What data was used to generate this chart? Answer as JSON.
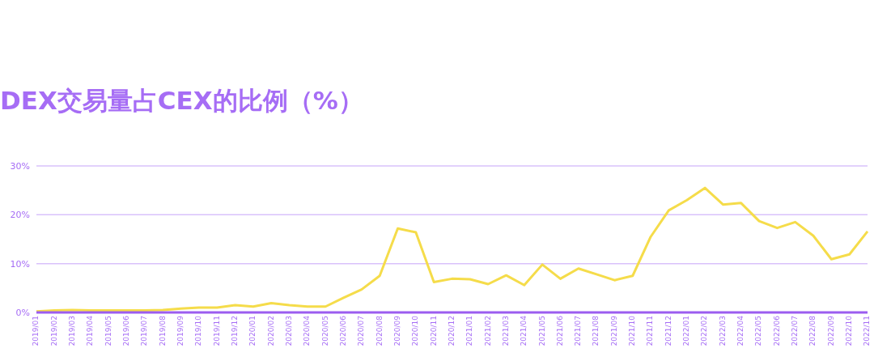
{
  "chart_data": {
    "type": "line",
    "title": "DEX交易量占CEX的比例（%）",
    "categories": [
      "2019/01",
      "2019/02",
      "2019/03",
      "2019/04",
      "2019/05",
      "2019/06",
      "2019/07",
      "2019/08",
      "2019/09",
      "2019/10",
      "2019/11",
      "2019/12",
      "2020/01",
      "2020/02",
      "2020/03",
      "2020/04",
      "2020/05",
      "2020/06",
      "2020/07",
      "2020/08",
      "2020/09",
      "2020/10",
      "2020/11",
      "2020/12",
      "2021/01",
      "2021/02",
      "2021/03",
      "2021/04",
      "2021/05",
      "2021/06",
      "2021/07",
      "2021/08",
      "2021/09",
      "2021/10",
      "2021/11",
      "2021/12",
      "2022/01",
      "2022/02",
      "2022/03",
      "2022/04",
      "2022/05",
      "2022/06",
      "2022/07",
      "2022/08",
      "2022/09",
      "2022/10",
      "2022/11"
    ],
    "series": [
      {
        "color": "#f5dc4a",
        "values": [
          0.2,
          0.4,
          0.5,
          0.4,
          0.4,
          0.4,
          0.4,
          0.5,
          0.8,
          1.0,
          1.0,
          1.5,
          1.2,
          1.9,
          1.5,
          1.2,
          1.2,
          3.0,
          4.7,
          7.5,
          17.2,
          16.4,
          6.2,
          6.9,
          6.8,
          5.8,
          7.6,
          5.6,
          9.8,
          6.9,
          9.0,
          7.8,
          6.6,
          7.5,
          15.5,
          20.9,
          23.0,
          25.5,
          22.1,
          22.4,
          18.7,
          17.3,
          18.5,
          15.7,
          10.9,
          11.9,
          16.6
        ]
      }
    ],
    "ylim": [
      0,
      30
    ],
    "yticks": [
      {
        "value": 0,
        "label": "0%"
      },
      {
        "value": 10,
        "label": "10%"
      },
      {
        "value": 20,
        "label": "20%"
      },
      {
        "value": 30,
        "label": "30%"
      }
    ],
    "grid": "y",
    "legend": false,
    "marker": "none",
    "line_style": "solid"
  }
}
